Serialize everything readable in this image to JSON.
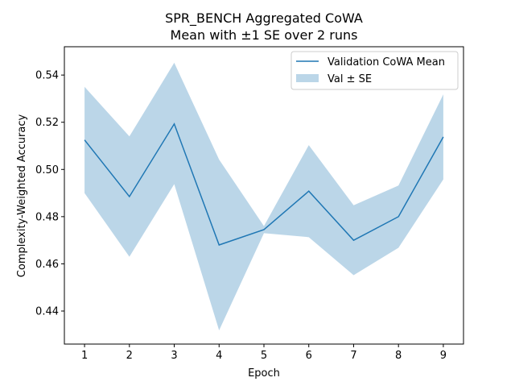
{
  "chart_data": {
    "type": "line",
    "title": "SPR_BENCH Aggregated CoWA",
    "subtitle": "Mean with ±1 SE over 2 runs",
    "xlabel": "Epoch",
    "ylabel": "Complexity-Weighted Accuracy",
    "x": [
      1,
      2,
      3,
      4,
      5,
      6,
      7,
      8,
      9
    ],
    "xlim": [
      0.55,
      9.45
    ],
    "ylim": [
      0.426,
      0.552
    ],
    "xticks": [
      1,
      2,
      3,
      4,
      5,
      6,
      7,
      8,
      9
    ],
    "yticks": [
      0.44,
      0.46,
      0.48,
      0.5,
      0.52,
      0.54
    ],
    "ytick_labels": [
      "0.44",
      "0.46",
      "0.48",
      "0.50",
      "0.52",
      "0.54"
    ],
    "grid": false,
    "legend_position": "top-right",
    "series": [
      {
        "name": "Validation CoWA Mean",
        "color": "#1f77b4",
        "values": [
          0.5125,
          0.4885,
          0.5193,
          0.468,
          0.4745,
          0.4908,
          0.47,
          0.48,
          0.5138
        ]
      }
    ],
    "band": {
      "name": "Val ± SE",
      "color": "#1f77b4",
      "lower": [
        0.49,
        0.463,
        0.4938,
        0.4318,
        0.473,
        0.4713,
        0.4552,
        0.4668,
        0.4958
      ],
      "upper": [
        0.535,
        0.514,
        0.5452,
        0.5042,
        0.476,
        0.5103,
        0.4848,
        0.4932,
        0.5318
      ]
    }
  }
}
